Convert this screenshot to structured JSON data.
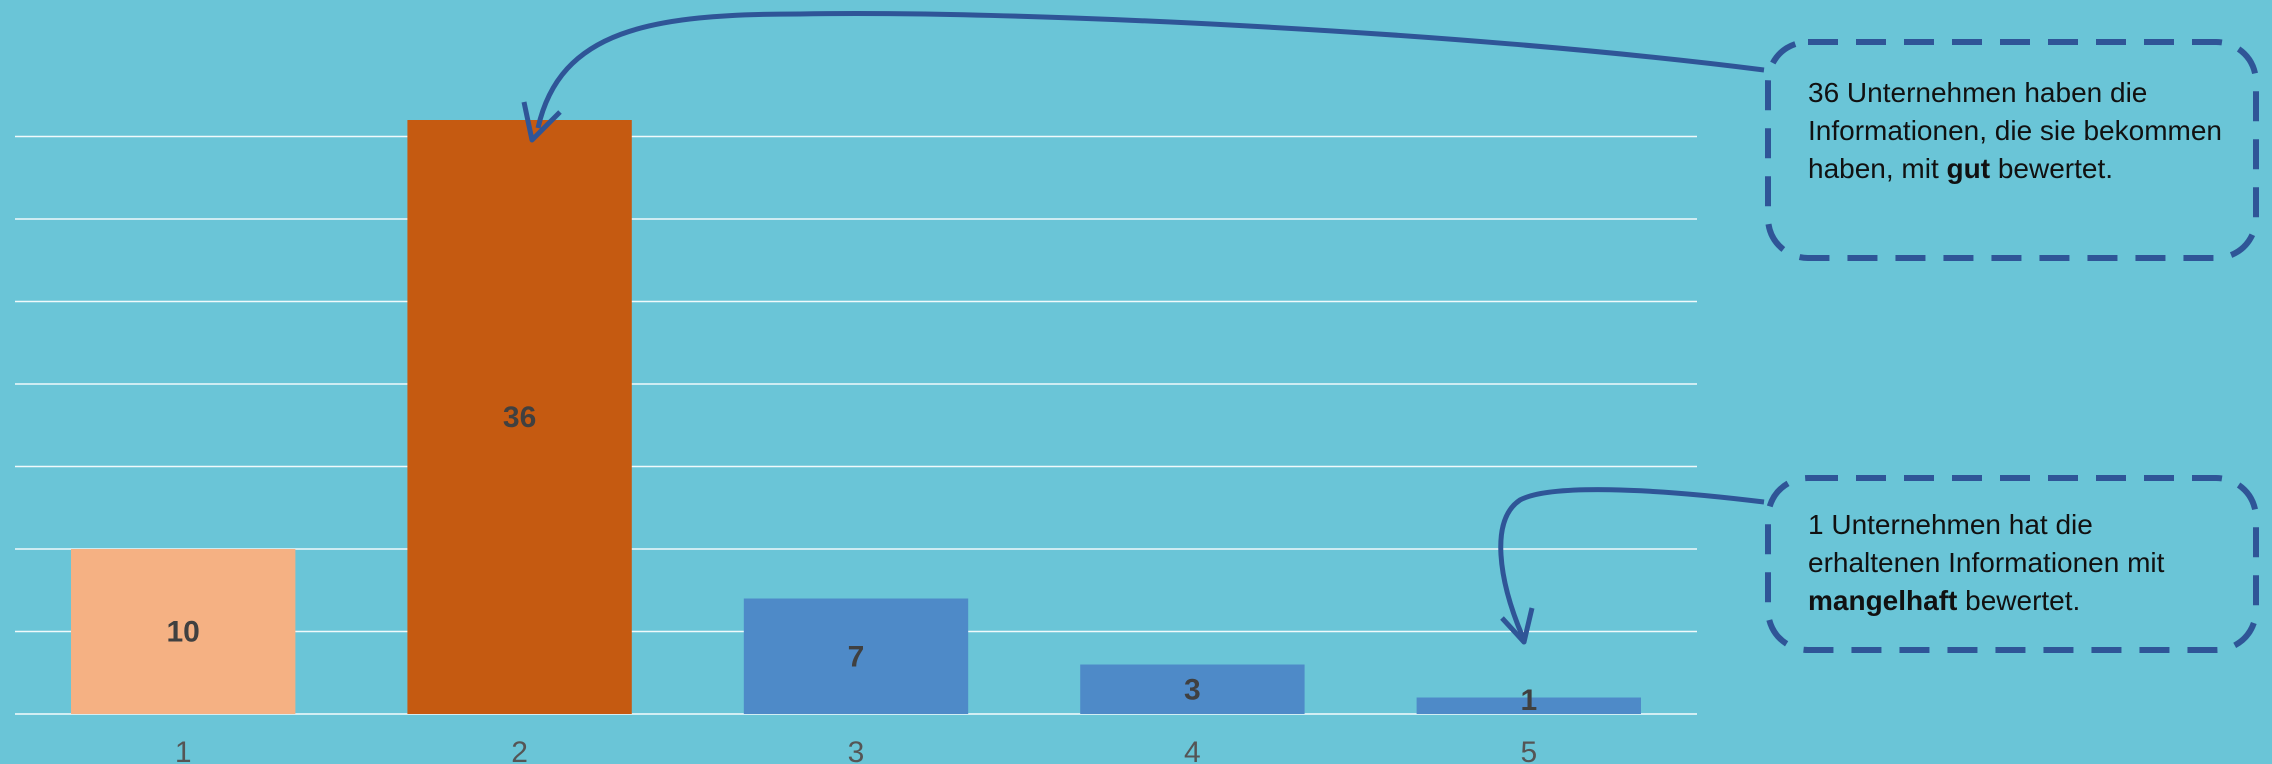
{
  "chart_data": {
    "type": "bar",
    "categories": [
      "1",
      "2",
      "3",
      "4",
      "5"
    ],
    "values": [
      10,
      36,
      7,
      3,
      1
    ],
    "data_labels": [
      "10",
      "36",
      "7",
      "3",
      "1"
    ],
    "bar_colors": [
      "#f5b183",
      "#c55a11",
      "#4e8ac8",
      "#4e8ac8",
      "#4e8ac8"
    ],
    "title": "",
    "xlabel": "",
    "ylabel": "",
    "ylim": [
      0,
      40
    ],
    "grid": true,
    "gridline_step": 5,
    "legend": "none"
  },
  "annotations": [
    {
      "target_category": "2",
      "text_before": "36 Unternehmen haben die Informationen, die sie bekommen haben, mit ",
      "text_bold": "gut",
      "text_after": " bewertet."
    },
    {
      "target_category": "5",
      "text_before": "1 Unternehmen hat die erhaltenen Informationen mit ",
      "text_bold": "mangelhaft",
      "text_after": " bewertet."
    }
  ],
  "colors": {
    "background": "#6ac5d7",
    "gridline": "#ffffff",
    "axis_label": "#555555",
    "data_label": "#404040",
    "callout_border": "#2f5597",
    "arrow": "#2f5597"
  }
}
